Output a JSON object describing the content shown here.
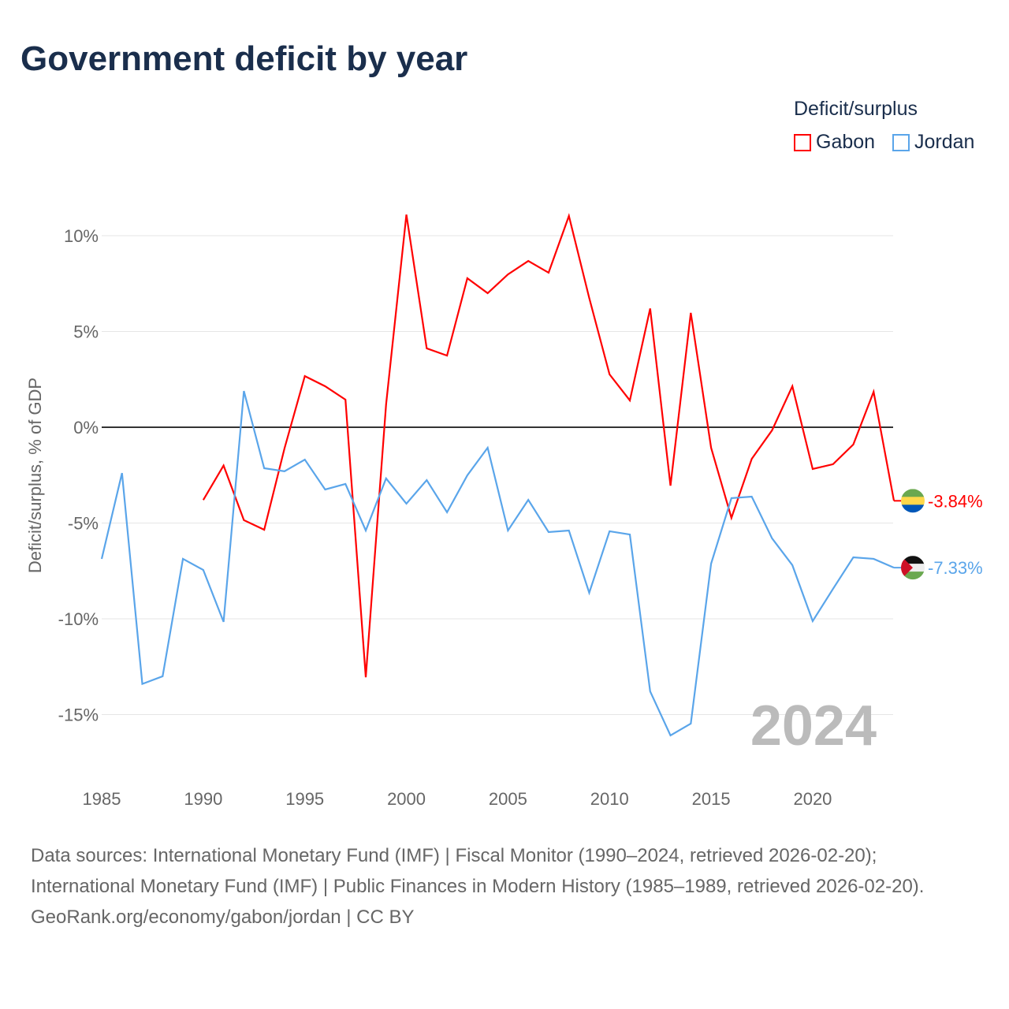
{
  "title": "Government deficit by year",
  "legend": {
    "title": "Deficit/surplus",
    "items": [
      {
        "name": "Gabon",
        "color": "#ff0000"
      },
      {
        "name": "Jordan",
        "color": "#5aa5ea"
      }
    ]
  },
  "footer": {
    "sources": "Data sources: International Monetary Fund (IMF) | Fiscal Monitor (1990–2024, retrieved 2026-02-20); International Monetary Fund (IMF) | Public Finances in Modern History (1985–1989, retrieved 2026-02-20).",
    "link": "GeoRank.org/economy/gabon/jordan | CC BY"
  },
  "chart_data": {
    "type": "line",
    "title": "Government deficit by year",
    "ylabel": "Deficit/surplus, % of GDP",
    "xlim": [
      1985,
      2024
    ],
    "ylim": [
      -17,
      11.5
    ],
    "xticks": [
      1985,
      1990,
      1995,
      2000,
      2005,
      2010,
      2015,
      2020
    ],
    "yticks": [
      {
        "v": 10,
        "label": "10%"
      },
      {
        "v": 5,
        "label": "5%"
      },
      {
        "v": 0,
        "label": "0%"
      },
      {
        "v": -5,
        "label": "-5%"
      },
      {
        "v": -10,
        "label": "-10%"
      },
      {
        "v": -15,
        "label": "-15%"
      }
    ],
    "year_label": "2024",
    "series": [
      {
        "name": "Gabon",
        "color": "#ff0000",
        "end_label": "-3.84%",
        "start": 1990,
        "values": [
          -3.8,
          -2.0,
          -4.85,
          -5.35,
          -1.1,
          2.67,
          2.14,
          1.44,
          -13.05,
          1.19,
          11.1,
          4.12,
          3.74,
          7.78,
          7.0,
          7.98,
          8.68,
          8.07,
          11.03,
          6.75,
          2.76,
          1.4,
          6.2,
          -3.05,
          5.97,
          -1.07,
          -4.73,
          -1.65,
          -0.16,
          2.14,
          -2.18,
          -1.93,
          -0.9,
          1.85,
          -3.84
        ]
      },
      {
        "name": "Jordan",
        "color": "#5aa5ea",
        "end_label": "-7.33%",
        "start": 1985,
        "values": [
          -6.87,
          -2.39,
          -13.4,
          -13.0,
          -6.87,
          -7.45,
          -10.16,
          1.89,
          -2.14,
          -2.3,
          -1.69,
          -3.25,
          -2.96,
          -5.39,
          -2.67,
          -3.99,
          -2.76,
          -4.44,
          -2.51,
          -1.07,
          -5.39,
          -3.79,
          -5.47,
          -5.39,
          -8.64,
          -5.43,
          -5.6,
          -13.79,
          -16.09,
          -15.47,
          -7.12,
          -3.7,
          -3.62,
          -5.8,
          -7.2,
          -10.12,
          -8.44,
          -6.79,
          -6.87,
          -7.33
        ]
      }
    ]
  }
}
